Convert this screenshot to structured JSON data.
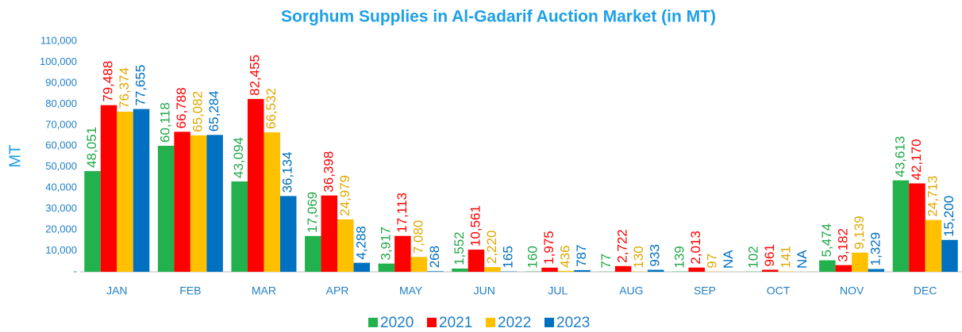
{
  "chart_data": {
    "type": "bar",
    "title": "Sorghum Supplies in Al-Gadarif Auction Market (in MT)",
    "ylabel": "MT",
    "categories": [
      "JAN",
      "FEB",
      "MAR",
      "APR",
      "MAY",
      "JUN",
      "JUL",
      "AUG",
      "SEP",
      "OCT",
      "NOV",
      "DEC"
    ],
    "series": [
      {
        "name": "2020",
        "color": "#22b14c",
        "label_color": "#22a84a",
        "values": [
          48051,
          60118,
          43094,
          17069,
          3917,
          1552,
          160,
          77,
          139,
          102,
          5474,
          43613
        ],
        "value_labels": [
          "48,051",
          "60,118",
          "43,094",
          "17,069",
          "3,917",
          "1,552",
          "160",
          "77",
          "139",
          "102",
          "5,474",
          "43,613"
        ]
      },
      {
        "name": "2021",
        "color": "#ff0000",
        "label_color": "#ff0000",
        "values": [
          79488,
          66788,
          82455,
          36398,
          17113,
          10561,
          1975,
          2722,
          2013,
          961,
          3182,
          42170
        ],
        "value_labels": [
          "79,488",
          "66,788",
          "82,455",
          "36,398",
          "17,113",
          "10,561",
          "1,975",
          "2,722",
          "2,013",
          "961",
          "3,182",
          "42,170"
        ]
      },
      {
        "name": "2022",
        "color": "#ffc000",
        "label_color": "#e0a800",
        "values": [
          76374,
          65082,
          66532,
          24979,
          7080,
          2220,
          436,
          130,
          97,
          141,
          9139,
          24713
        ],
        "value_labels": [
          "76,374",
          "65,082",
          "66,532",
          "24,979",
          "7,080",
          "2,220",
          "436",
          "130",
          "97",
          "141",
          "9,139",
          "24,713"
        ]
      },
      {
        "name": "2023",
        "color": "#0070c0",
        "label_color": "#0070c0",
        "values": [
          77655,
          65284,
          36134,
          4288,
          268,
          165,
          787,
          933,
          null,
          null,
          1329,
          15200
        ],
        "value_labels": [
          "77,655",
          "65,284",
          "36,134",
          "4,288",
          "268",
          "165",
          "787",
          "933",
          "NA",
          "NA",
          "1,329",
          "15,200"
        ]
      }
    ],
    "ylim": [
      0,
      110000
    ],
    "yticks": [
      {
        "value": 0,
        "label": "-"
      },
      {
        "value": 10000,
        "label": "10,000"
      },
      {
        "value": 20000,
        "label": "20,000"
      },
      {
        "value": 30000,
        "label": "30,000"
      },
      {
        "value": 40000,
        "label": "40,000"
      },
      {
        "value": 50000,
        "label": "50,000"
      },
      {
        "value": 60000,
        "label": "60,000"
      },
      {
        "value": 70000,
        "label": "70,000"
      },
      {
        "value": 80000,
        "label": "80,000"
      },
      {
        "value": 90000,
        "label": "90,000"
      },
      {
        "value": 100000,
        "label": "100,000"
      },
      {
        "value": 110000,
        "label": "110,000"
      }
    ],
    "grid": false,
    "legend": "bottom"
  }
}
